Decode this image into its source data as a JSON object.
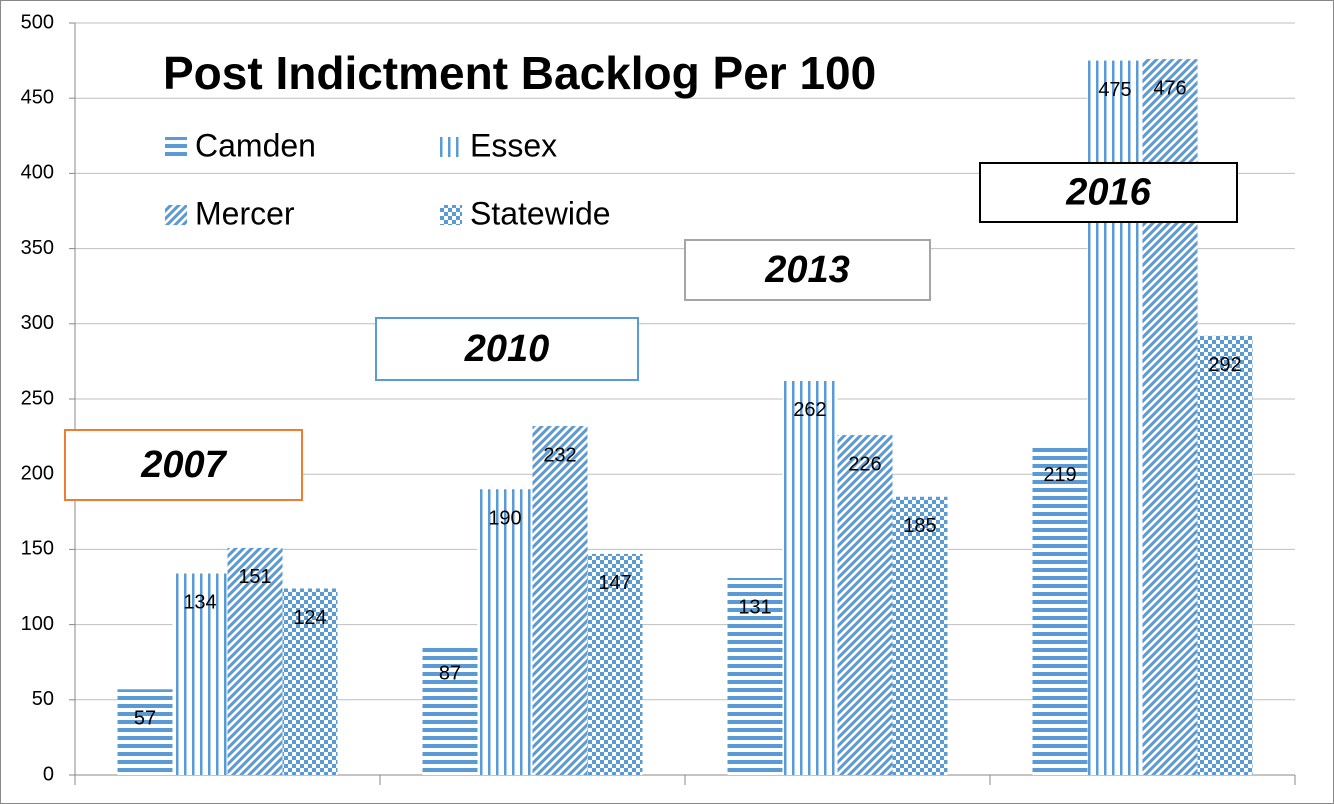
{
  "chart_data": {
    "type": "bar",
    "title": "Post Indictment Backlog Per 100",
    "categories": [
      "2007",
      "2010",
      "2013",
      "2016"
    ],
    "category_box_colors": [
      "#ed7d31",
      "#5b9bd5",
      "#a5a5a5",
      "#000000"
    ],
    "series": [
      {
        "name": "Camden",
        "color": "#5b9bd5",
        "pattern": "horizontal",
        "values": [
          57,
          87,
          131,
          219
        ]
      },
      {
        "name": "Essex",
        "color": "#5b9bd5",
        "pattern": "vertical",
        "values": [
          134,
          190,
          262,
          475
        ]
      },
      {
        "name": "Mercer",
        "color": "#5b9bd5",
        "pattern": "diagonal",
        "values": [
          151,
          232,
          226,
          476
        ]
      },
      {
        "name": "Statewide",
        "color": "#5b9bd5",
        "pattern": "checker",
        "values": [
          124,
          147,
          185,
          292
        ]
      }
    ],
    "ylim": [
      0,
      500
    ],
    "yticks": [
      0,
      50,
      100,
      150,
      200,
      250,
      300,
      350,
      400,
      450,
      500
    ],
    "grid": true
  }
}
